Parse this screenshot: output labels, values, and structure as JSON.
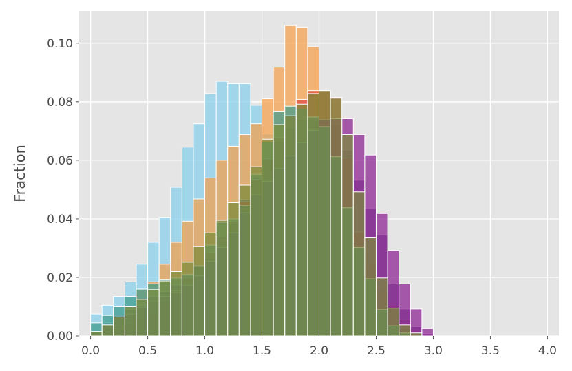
{
  "chart_data": {
    "type": "bar",
    "title": "",
    "xlabel": "",
    "ylabel": "Fraction",
    "xlim": [
      -0.1,
      4.1
    ],
    "ylim": [
      0,
      0.111
    ],
    "x_ticks": [
      0.0,
      0.5,
      1.0,
      1.5,
      2.0,
      2.5,
      3.0,
      3.5,
      4.0
    ],
    "x_tick_labels": [
      "0.0",
      "0.5",
      "1.0",
      "1.5",
      "2.0",
      "2.5",
      "3.0",
      "3.5",
      "4.0"
    ],
    "y_ticks": [
      0.0,
      0.02,
      0.04,
      0.06,
      0.08,
      0.1
    ],
    "y_tick_labels": [
      "0.00",
      "0.02",
      "0.04",
      "0.06",
      "0.08",
      "0.10"
    ],
    "grid": true,
    "legend": "none",
    "bin_edges": [
      0.0,
      0.1,
      0.2,
      0.3,
      0.4,
      0.5,
      0.6,
      0.7,
      0.8,
      0.9,
      1.0,
      1.1,
      1.2,
      1.3,
      1.4,
      1.5,
      1.6,
      1.7,
      1.8,
      1.9,
      2.0,
      2.1,
      2.2,
      2.3,
      2.4,
      2.5,
      2.6,
      2.7,
      2.8,
      2.9,
      3.0
    ],
    "series": [
      {
        "color": "#87ceeb",
        "values": [
          0.0075,
          0.0105,
          0.0135,
          0.0185,
          0.0245,
          0.032,
          0.0405,
          0.0508,
          0.0645,
          0.0725,
          0.0828,
          0.087,
          0.0862,
          0.0862,
          0.0788,
          0.069,
          0.0495,
          0.0292,
          0.018,
          0.0098,
          0.0048,
          0.0012,
          0.0,
          0.0,
          0.0,
          0.0,
          0.0,
          0.0,
          0.0,
          0.0
        ]
      },
      {
        "color": "#f5a04b",
        "values": [
          0.0015,
          0.0038,
          0.0065,
          0.01,
          0.0158,
          0.0185,
          0.0245,
          0.032,
          0.0392,
          0.0468,
          0.054,
          0.06,
          0.0648,
          0.0688,
          0.0725,
          0.081,
          0.0918,
          0.106,
          0.1055,
          0.0988,
          0.0835,
          0.066,
          0.048,
          0.0345,
          0.0245,
          0.0158,
          0.0105,
          0.0055,
          0.002,
          0.0005
        ]
      },
      {
        "color": "#6c4f8f",
        "values": [
          0.0015,
          0.0045,
          0.007,
          0.009,
          0.0105,
          0.0135,
          0.0152,
          0.0175,
          0.0205,
          0.0232,
          0.0265,
          0.0325,
          0.0385,
          0.0465,
          0.054,
          0.0605,
          0.0665,
          0.0712,
          0.0738,
          0.0742,
          0.0738,
          0.0722,
          0.0635,
          0.0532,
          0.0435,
          0.0345,
          0.0178,
          0.0092,
          0.0032,
          0.0008
        ]
      },
      {
        "color": "#d94a3f",
        "values": [
          0.0008,
          0.0015,
          0.0025,
          0.0045,
          0.006,
          0.008,
          0.012,
          0.0155,
          0.0198,
          0.024,
          0.0285,
          0.0338,
          0.0392,
          0.0458,
          0.0535,
          0.0605,
          0.0678,
          0.0752,
          0.0808,
          0.0838,
          0.0838,
          0.0815,
          0.0608,
          0.0355,
          0.0195,
          0.0085,
          0.003,
          0.001,
          0.0,
          0.0
        ]
      },
      {
        "color": "#8a2090",
        "values": [
          0.0015,
          0.0038,
          0.0065,
          0.0075,
          0.0098,
          0.0118,
          0.0135,
          0.0148,
          0.0172,
          0.0205,
          0.0255,
          0.0302,
          0.0352,
          0.042,
          0.0482,
          0.0528,
          0.0572,
          0.0615,
          0.066,
          0.0702,
          0.0738,
          0.0742,
          0.0742,
          0.0688,
          0.0618,
          0.0418,
          0.0292,
          0.0178,
          0.0092,
          0.0025
        ]
      },
      {
        "color": "#3d9b8c",
        "values": [
          0.0045,
          0.007,
          0.01,
          0.0135,
          0.016,
          0.0178,
          0.0192,
          0.0198,
          0.021,
          0.0238,
          0.031,
          0.0388,
          0.04,
          0.0445,
          0.0552,
          0.0662,
          0.0768,
          0.0785,
          0.0775,
          0.0748,
          0.0715,
          0.0612,
          0.0438,
          0.0302,
          0.0195,
          0.009,
          0.0035,
          0.001,
          0.0,
          0.0
        ]
      },
      {
        "color": "#7a8a3a",
        "values": [
          0.0015,
          0.0038,
          0.0065,
          0.01,
          0.0125,
          0.0158,
          0.0188,
          0.022,
          0.0252,
          0.0305,
          0.0352,
          0.0395,
          0.0455,
          0.0515,
          0.0578,
          0.0672,
          0.0722,
          0.0752,
          0.0792,
          0.0828,
          0.0838,
          0.0812,
          0.0688,
          0.0492,
          0.0335,
          0.0198,
          0.0095,
          0.0038,
          0.001,
          0.0
        ]
      }
    ]
  }
}
